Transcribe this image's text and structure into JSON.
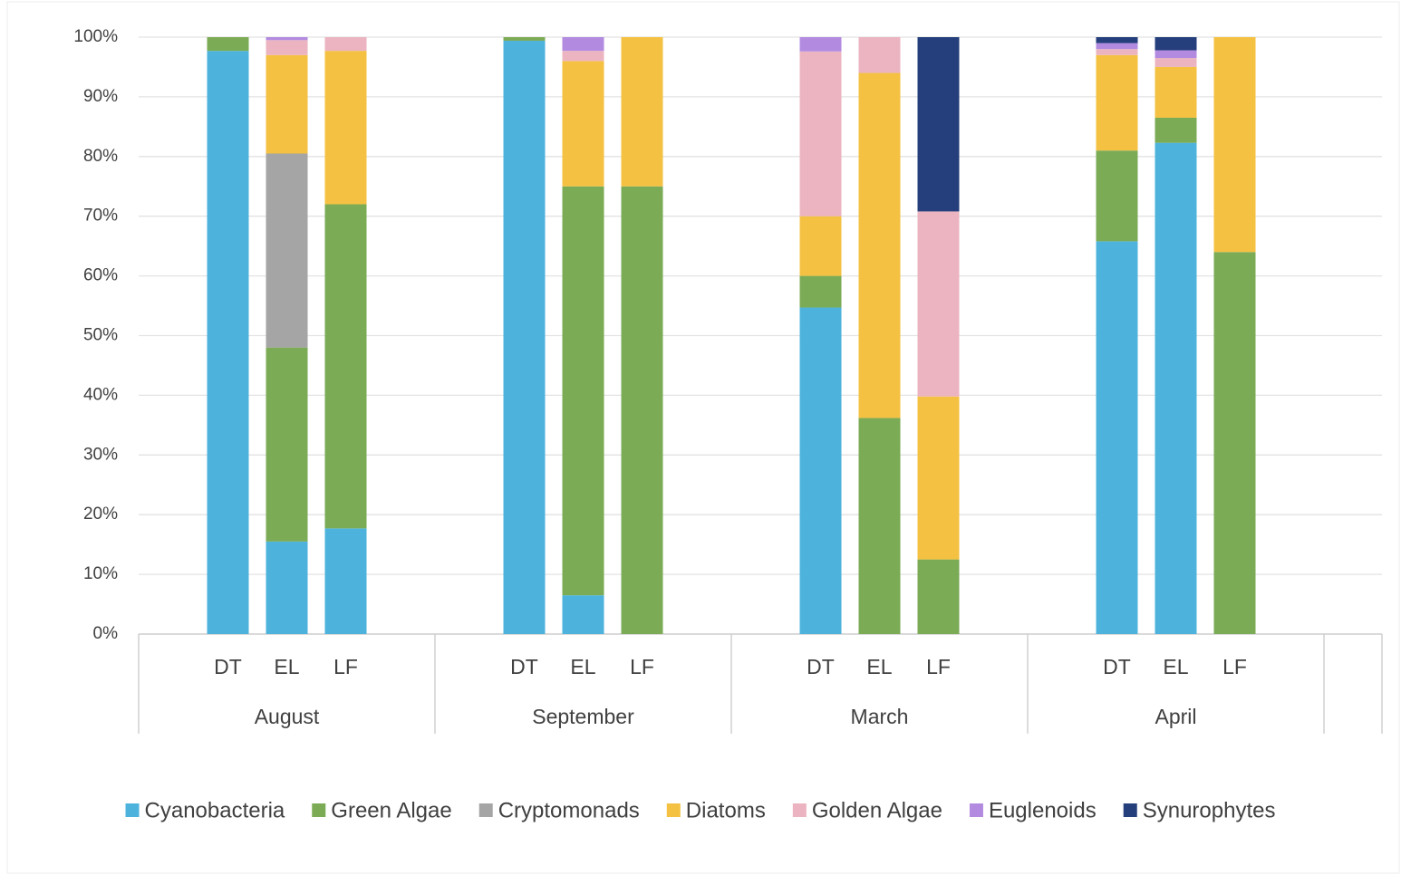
{
  "chart_data": {
    "type": "stacked_bar",
    "categories": [
      "DT",
      "EL",
      "LF",
      "DT",
      "EL",
      "LF",
      "DT",
      "EL",
      "LF",
      "DT",
      "EL",
      "LF"
    ],
    "groups": [
      "August",
      "September",
      "March",
      "April"
    ],
    "ylim": [
      0,
      100
    ],
    "yticks": [
      {
        "value": 0,
        "label": "0%"
      },
      {
        "value": 10,
        "label": "10%"
      },
      {
        "value": 20,
        "label": "20%"
      },
      {
        "value": 30,
        "label": "30%"
      },
      {
        "value": 40,
        "label": "40%"
      },
      {
        "value": 50,
        "label": "50%"
      },
      {
        "value": 60,
        "label": "60%"
      },
      {
        "value": 70,
        "label": "70%"
      },
      {
        "value": 80,
        "label": "80%"
      },
      {
        "value": 90,
        "label": "90%"
      },
      {
        "value": 100,
        "label": "100%"
      }
    ],
    "grid": true,
    "legend": "bottom",
    "series": [
      {
        "name": "Cyanobacteria",
        "color": "#4db3dc",
        "values": [
          97.7,
          15.5,
          17.7,
          99.4,
          6.5,
          0,
          54.7,
          0,
          0,
          65.8,
          82.3,
          0
        ]
      },
      {
        "name": "Green Algae",
        "color": "#7bab55",
        "values": [
          2.3,
          32.5,
          54.3,
          0.6,
          68.5,
          75,
          5.3,
          36.2,
          12.5,
          15.2,
          4.2,
          64
        ]
      },
      {
        "name": "Cryptomonads",
        "color": "#a5a5a5",
        "values": [
          0,
          32.5,
          0,
          0,
          0,
          0,
          0,
          0,
          0,
          0,
          0,
          0
        ]
      },
      {
        "name": "Diatoms",
        "color": "#f4c142",
        "values": [
          0,
          16.5,
          25.7,
          0,
          21,
          25,
          10,
          57.8,
          27.3,
          16,
          8.5,
          36
        ]
      },
      {
        "name": "Golden Algae",
        "color": "#ebb4c0",
        "values": [
          0,
          2.5,
          2.3,
          0,
          1.7,
          0,
          27.6,
          6,
          31,
          1,
          1.5,
          0
        ]
      },
      {
        "name": "Euglenoids",
        "color": "#b28be0",
        "values": [
          0,
          0.5,
          0,
          0,
          2.3,
          0,
          2.4,
          0,
          0,
          1,
          1.3,
          0
        ]
      },
      {
        "name": "Synurophytes",
        "color": "#243f7b",
        "values": [
          0,
          0,
          0,
          0,
          0,
          0,
          0,
          0,
          29.2,
          1,
          2.2,
          0
        ]
      }
    ]
  }
}
